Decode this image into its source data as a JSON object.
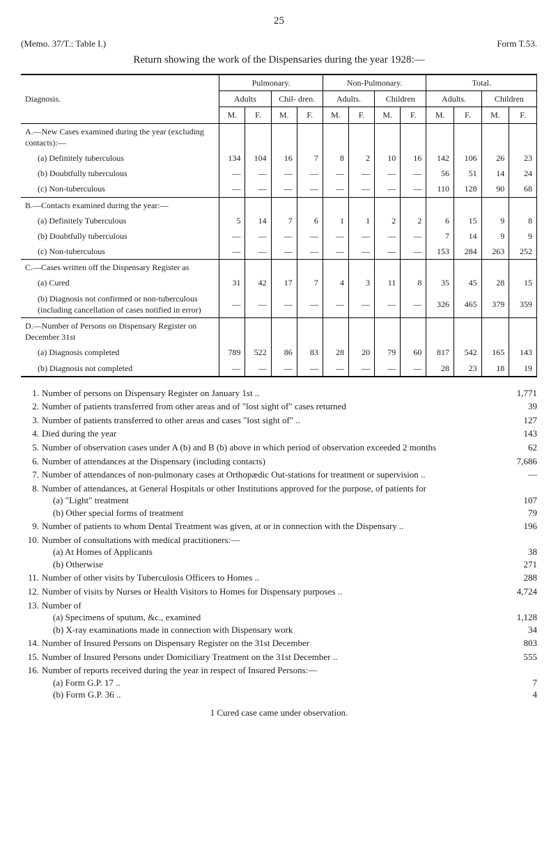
{
  "page_number": "25",
  "memo": "(Memo. 37/T.: Table I.)",
  "form": "Form T.53.",
  "return_title": "Return showing the work of the Dispensaries during the year 1928:—",
  "table": {
    "diagnosis_header": "Diagnosis.",
    "col_groups": [
      "Pulmonary.",
      "Non-Pulmonary.",
      "Total."
    ],
    "sub_headers": [
      "Adults",
      "Chil-\ndren.",
      "Adults.",
      "Children",
      "Adults.",
      "Children"
    ],
    "mf": [
      "M.",
      "F.",
      "M.",
      "F.",
      "M.",
      "F.",
      "M.",
      "F.",
      "M.",
      "F.",
      "M.",
      "F."
    ],
    "sections": [
      {
        "rows": [
          {
            "label": "A.—New Cases examined during the year (excluding contacts):—",
            "vals": [
              "",
              "",
              "",
              "",
              "",
              "",
              "",
              "",
              "",
              "",
              "",
              ""
            ]
          },
          {
            "label": "(a) Definitely tuberculous",
            "indent": 1,
            "vals": [
              "134",
              "104",
              "16",
              "7",
              "8",
              "2",
              "10",
              "16",
              "142",
              "106",
              "26",
              "23"
            ]
          },
          {
            "label": "(b) Doubtfully tuberculous",
            "indent": 1,
            "vals": [
              "—",
              "—",
              "—",
              "—",
              "—",
              "—",
              "—",
              "—",
              "56",
              "51",
              "14",
              "24"
            ]
          },
          {
            "label": "(c) Non-tuberculous",
            "indent": 1,
            "vals": [
              "—",
              "—",
              "—",
              "—",
              "—",
              "—",
              "—",
              "—",
              "110",
              "128",
              "90",
              "68"
            ]
          }
        ]
      },
      {
        "rows": [
          {
            "label": "B.—Contacts examined during the year:—",
            "vals": [
              "",
              "",
              "",
              "",
              "",
              "",
              "",
              "",
              "",
              "",
              "",
              ""
            ]
          },
          {
            "label": "(a) Definitely Tuberculous",
            "indent": 1,
            "vals": [
              "5",
              "14",
              "7",
              "6",
              "1",
              "1",
              "2",
              "2",
              "6",
              "15",
              "9",
              "8"
            ]
          },
          {
            "label": "(b) Doubtfully tuberculous",
            "indent": 1,
            "vals": [
              "—",
              "—",
              "—",
              "—",
              "—",
              "—",
              "—",
              "—",
              "7",
              "14",
              "9",
              "9"
            ]
          },
          {
            "label": "(c) Non-tuberculous",
            "indent": 1,
            "vals": [
              "—",
              "—",
              "—",
              "—",
              "—",
              "—",
              "—",
              "—",
              "153",
              "284",
              "263",
              "252"
            ]
          }
        ]
      },
      {
        "rows": [
          {
            "label": "C.—Cases written off the Dispensary Register as",
            "vals": [
              "",
              "",
              "",
              "",
              "",
              "",
              "",
              "",
              "",
              "",
              "",
              ""
            ]
          },
          {
            "label": "(a) Cured",
            "indent": 1,
            "vals": [
              "31",
              "42",
              "17",
              "7",
              "4",
              "3",
              "11",
              "8",
              "35",
              "45",
              "28",
              "15"
            ]
          },
          {
            "label": "(b) Diagnosis not confirmed or non-tuberculous (including cancellation of cases notified in error)",
            "indent": 1,
            "vals": [
              "—",
              "—",
              "—",
              "—",
              "—",
              "—",
              "—",
              "—",
              "326",
              "465",
              "379",
              "359"
            ]
          }
        ]
      },
      {
        "rows": [
          {
            "label": "D.—Number of Persons on Dispensary Register on December 31st",
            "vals": [
              "",
              "",
              "",
              "",
              "",
              "",
              "",
              "",
              "",
              "",
              "",
              ""
            ]
          },
          {
            "label": "(a) Diagnosis completed",
            "indent": 1,
            "vals": [
              "789",
              "522",
              "86",
              "83",
              "28",
              "20",
              "79",
              "60",
              "817",
              "542",
              "165",
              "143"
            ]
          },
          {
            "label": "(b) Diagnosis not completed",
            "indent": 1,
            "vals": [
              "—",
              "—",
              "—",
              "—",
              "—",
              "—",
              "—",
              "—",
              "28",
              "23",
              "18",
              "19"
            ]
          }
        ]
      }
    ]
  },
  "stats": [
    {
      "n": 1,
      "label": "Number of persons on Dispensary Register on January 1st ..",
      "val": "1,771"
    },
    {
      "n": 2,
      "label": "Number of patients transferred from other areas and of \"lost sight of\" cases returned",
      "val": "39"
    },
    {
      "n": 3,
      "label": "Number of patients transferred to other areas and cases \"lost sight of\" ..",
      "val": "127"
    },
    {
      "n": 4,
      "label": "Died during the year",
      "val": "143"
    },
    {
      "n": 5,
      "label": "Number of observation cases under A (b) and B (b) above in which period of observation exceeded 2 months",
      "val": "62"
    },
    {
      "n": 6,
      "label": "Number of attendances at the Dispensary (including contacts)",
      "val": "7,686"
    },
    {
      "n": 7,
      "label": "Number of attendances of non-pulmonary cases at Orthopædic Out-stations for treatment or supervision ..",
      "val": "—"
    },
    {
      "n": 8,
      "label": "Number of attendances, at General Hospitals or other Institutions approved for the purpose, of patients for",
      "val": ""
    },
    {
      "sub": true,
      "label": "(a) \"Light\" treatment",
      "val": "107"
    },
    {
      "sub": true,
      "label": "(b) Other special forms of treatment",
      "val": "79"
    },
    {
      "n": 9,
      "label": "Number of patients to whom Dental Treatment was given, at or in connection with the Dispensary ..",
      "val": "196"
    },
    {
      "n": 10,
      "label": "Number of consultations with medical practitioners:—",
      "val": ""
    },
    {
      "sub": true,
      "label": "(a) At Homes of Applicants",
      "val": "38"
    },
    {
      "sub": true,
      "label": "(b) Otherwise",
      "val": "271"
    },
    {
      "n": 11,
      "label": "Number of other visits by Tuberculosis Officers to Homes ..",
      "val": "288"
    },
    {
      "n": 12,
      "label": "Number of visits by Nurses or Health Visitors to Homes for Dispensary purposes ..",
      "val": "4,724"
    },
    {
      "n": 13,
      "label": "Number of",
      "val": ""
    },
    {
      "sub": true,
      "label": "(a) Specimens of sputum, &c., examined",
      "val": "1,128"
    },
    {
      "sub": true,
      "label": "(b) X-ray examinations made in connection with Dispensary work",
      "val": "34"
    },
    {
      "n": 14,
      "label": "Number of Insured Persons on Dispensary Register on the 31st December",
      "val": "803"
    },
    {
      "n": 15,
      "label": "Number of Insured Persons under Domiciliary Treatment on the 31st December ..",
      "val": "555"
    },
    {
      "n": 16,
      "label": "Number of reports received during the year in respect of Insured Persons:—",
      "val": ""
    },
    {
      "sub": true,
      "label": "(a) Form G.P. 17 ..",
      "val": "7"
    },
    {
      "sub": true,
      "label": "(b) Form G.P. 36 ..",
      "val": "4"
    }
  ],
  "footnote": "1 Cured case came under observation."
}
